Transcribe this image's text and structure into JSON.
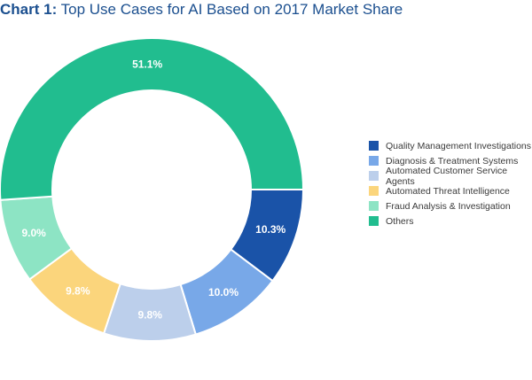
{
  "title": {
    "prefix": "Chart 1:",
    "text": " Top Use Cases for AI Based on 2017 Market Share"
  },
  "chart_data": {
    "type": "pie",
    "donut": true,
    "title": "Chart 1: Top Use Cases for AI Based on 2017 Market Share",
    "legend_position": "right",
    "categories": [
      "Quality Management Investigations",
      "Diagnosis & Treatment Systems",
      "Automated Customer Service Agents",
      "Automated Threat Intelligence",
      "Fraud Analysis & Investigation",
      "Others"
    ],
    "values": [
      10.3,
      10.0,
      9.8,
      9.8,
      9.0,
      51.1
    ],
    "labels": [
      "10.3%",
      "10.0%",
      "9.8%",
      "9.8%",
      "9.0%",
      "51.1%"
    ],
    "colors": [
      "#1a53a8",
      "#78a8e8",
      "#bccfeb",
      "#fbd57c",
      "#8de4c4",
      "#21bd8f"
    ],
    "label_colors": [
      "#ffffff",
      "#ffffff",
      "#ffffff",
      "#ffffff",
      "#ffffff",
      "#ffffff"
    ]
  }
}
